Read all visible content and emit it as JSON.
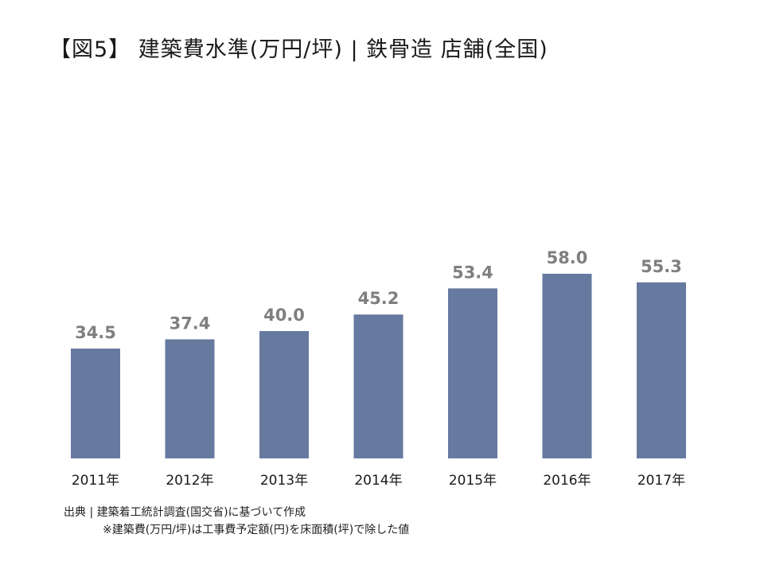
{
  "chart_data": {
    "type": "bar",
    "title": "【図5】 建築費水準(万円/坪) | 鉄骨造 店舗(全国)",
    "categories": [
      "2011年",
      "2012年",
      "2013年",
      "2014年",
      "2015年",
      "2016年",
      "2017年"
    ],
    "values": [
      34.5,
      37.4,
      40.0,
      45.2,
      53.4,
      58.0,
      55.3
    ],
    "data_labels": [
      "34.5",
      "37.4",
      "40.0",
      "45.2",
      "53.4",
      "58.0",
      "55.3"
    ],
    "ylim": [
      0,
      58.0
    ],
    "bar_color": "#66799f",
    "label_color": "#7f7f7f",
    "grid": false,
    "legend": "none"
  },
  "footer": {
    "source": "出典 | 建築着工統計調査(国交省)に基づいて作成",
    "note": "※建築費(万円/坪)は工事費予定額(円)を床面積(坪)で除した値"
  }
}
